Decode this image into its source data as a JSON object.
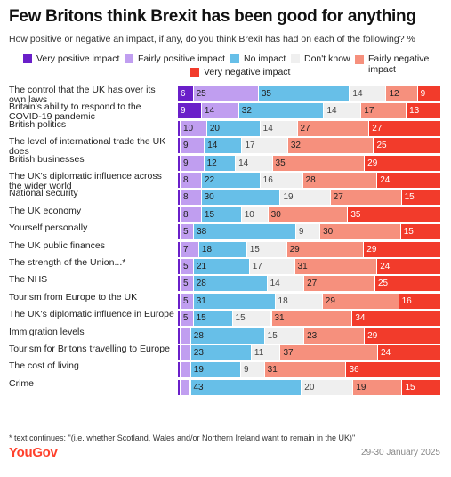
{
  "title": "Few Britons think Brexit has been good for anything",
  "subtitle": "How positive or negative an impact, if any, do you think Brexit has had on each of the following? %",
  "footnote": "* text continues: \"(i.e. whether Scotland, Wales and/or Northern Ireland want to remain in the UK)\"",
  "source": "YouGov",
  "date": "29-30 January 2025",
  "colors": {
    "very_positive": "#6a1fc9",
    "fairly_positive": "#c09ef0",
    "no_impact": "#67bfe8",
    "dont_know": "#efefef",
    "fairly_negative": "#f6907d",
    "very_negative": "#f23b2b"
  },
  "chart_data": {
    "type": "bar",
    "orientation": "horizontal",
    "stacked": true,
    "legend_placement": "top",
    "series": [
      {
        "name": "Very positive impact",
        "color": "#6a1fc9",
        "values": [
          6,
          9,
          1,
          1,
          1,
          1,
          1,
          1,
          1,
          1,
          1,
          1,
          1,
          1,
          1,
          1,
          1,
          1
        ]
      },
      {
        "name": "Fairly positive impact",
        "color": "#c09ef0",
        "values": [
          25,
          14,
          10,
          9,
          9,
          8,
          8,
          8,
          5,
          7,
          5,
          5,
          5,
          5,
          4,
          4,
          4,
          4
        ]
      },
      {
        "name": "No impact",
        "color": "#67bfe8",
        "values": [
          35,
          32,
          20,
          14,
          12,
          22,
          30,
          15,
          38,
          18,
          21,
          28,
          31,
          15,
          28,
          23,
          19,
          43
        ]
      },
      {
        "name": "Don't know",
        "color": "#efefef",
        "values": [
          14,
          14,
          14,
          17,
          14,
          16,
          19,
          10,
          9,
          15,
          17,
          14,
          18,
          15,
          15,
          11,
          9,
          20
        ]
      },
      {
        "name": "Fairly negative impact",
        "color": "#f6907d",
        "values": [
          12,
          17,
          27,
          32,
          35,
          28,
          27,
          30,
          30,
          29,
          31,
          27,
          29,
          31,
          23,
          37,
          31,
          19
        ]
      },
      {
        "name": "Very negative impact",
        "color": "#f23b2b",
        "values": [
          9,
          13,
          27,
          25,
          29,
          24,
          15,
          35,
          15,
          29,
          24,
          25,
          16,
          34,
          29,
          24,
          36,
          15
        ]
      }
    ],
    "value_labels": [
      [
        "6",
        "25",
        "35",
        "14",
        "12",
        "9"
      ],
      [
        "9",
        "14",
        "32",
        "14",
        "17",
        "13"
      ],
      [
        "",
        "10",
        "20",
        "14",
        "27",
        "27"
      ],
      [
        "",
        "9",
        "14",
        "17",
        "32",
        "25"
      ],
      [
        "",
        "9",
        "12",
        "14",
        "35",
        "29"
      ],
      [
        "",
        "8",
        "22",
        "16",
        "28",
        "24"
      ],
      [
        "",
        "8",
        "30",
        "19",
        "27",
        "15"
      ],
      [
        "",
        "8",
        "15",
        "10",
        "30",
        "35"
      ],
      [
        "",
        "5",
        "38",
        "9",
        "30",
        "15"
      ],
      [
        "",
        "7",
        "18",
        "15",
        "29",
        "29"
      ],
      [
        "",
        "5",
        "21",
        "17",
        "31",
        "24"
      ],
      [
        "",
        "5",
        "28",
        "14",
        "27",
        "25"
      ],
      [
        "",
        "5",
        "31",
        "18",
        "29",
        "16"
      ],
      [
        "",
        "5",
        "15",
        "15",
        "31",
        "34"
      ],
      [
        "",
        "",
        "28",
        "15",
        "23",
        "29"
      ],
      [
        "",
        "",
        "23",
        "11",
        "37",
        "24"
      ],
      [
        "",
        "",
        "19",
        "9",
        "31",
        "36"
      ],
      [
        "",
        "",
        "43",
        "20",
        "19",
        "15"
      ]
    ],
    "categories": [
      "The control that the UK has over its own laws",
      "Britain's ability to respond to the COVID-19 pandemic",
      "British politics",
      "The level of international trade the UK does",
      "British businesses",
      "The UK's diplomatic influence across the wider world",
      "National security",
      "The UK economy",
      "Yourself personally",
      "The UK public finances",
      "The strength of the Union...*",
      "The NHS",
      "Tourism from Europe to the UK",
      "The UK's diplomatic influence in Europe",
      "Immigration levels",
      "Tourism for Britons travelling to Europe",
      "The cost of living",
      "Crime"
    ]
  }
}
